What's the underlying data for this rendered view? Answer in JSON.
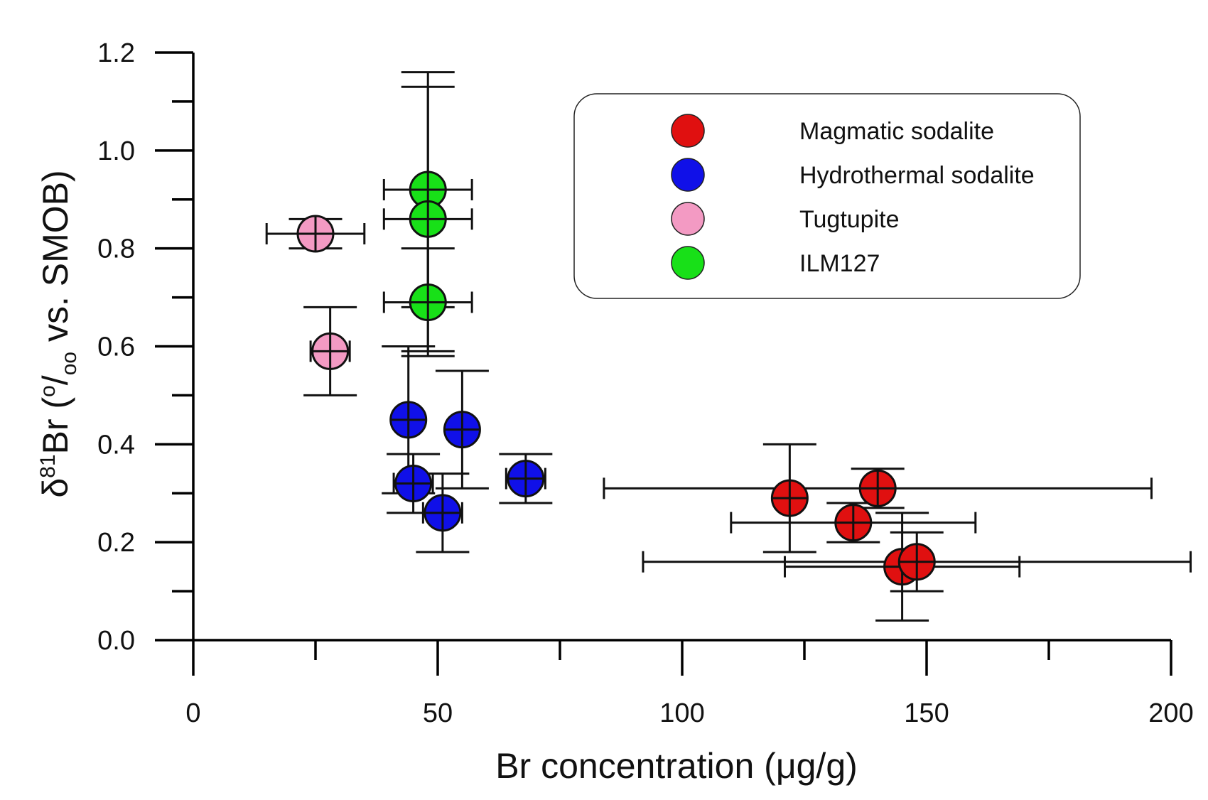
{
  "chart_data": {
    "type": "scatter",
    "title": "",
    "xlabel": "Br concentration (μg/g)",
    "ylabel": {
      "prefix": "δ",
      "sup": "81",
      "main": "Br (",
      "unit_sup": "o",
      "unit_slash": "/",
      "unit_sub": "oo",
      "suffix": " vs. SMOB)"
    },
    "xlim": [
      0,
      200
    ],
    "ylim": [
      0,
      1.2
    ],
    "x_ticks": [
      0,
      50,
      100,
      150,
      200
    ],
    "x_tick_labels": [
      "0",
      "50",
      "100",
      "150",
      "200"
    ],
    "y_ticks": [
      0,
      0.2,
      0.4,
      0.6,
      0.8,
      1.0,
      1.2
    ],
    "y_tick_labels": [
      "0.0",
      "0.2",
      "0.4",
      "0.6",
      "0.8",
      "1.0",
      "1.2"
    ],
    "grid": false,
    "legend_position": "top-right",
    "series": [
      {
        "name": "Magmatic sodalite",
        "color": "#e01010",
        "points": [
          {
            "x": 122,
            "y": 0.29,
            "xerr": 3,
            "yerr": 0.11
          },
          {
            "x": 140,
            "y": 0.31,
            "xerr": 56,
            "yerr": 0.04
          },
          {
            "x": 135,
            "y": 0.24,
            "xerr": 25,
            "yerr": 0.04
          },
          {
            "x": 145,
            "y": 0.15,
            "xerr": 24,
            "yerr": 0.11
          },
          {
            "x": 148,
            "y": 0.16,
            "xerr": 56,
            "yerr": 0.06
          }
        ]
      },
      {
        "name": "Hydrothermal sodalite",
        "color": "#1010e8",
        "points": [
          {
            "x": 44,
            "y": 0.45,
            "xerr": 2,
            "yerr": 0.15
          },
          {
            "x": 55,
            "y": 0.43,
            "xerr": 3,
            "yerr": 0.12
          },
          {
            "x": 45,
            "y": 0.32,
            "xerr": 4,
            "yerr": 0.06
          },
          {
            "x": 51,
            "y": 0.26,
            "xerr": 4,
            "yerr": 0.08
          },
          {
            "x": 68,
            "y": 0.33,
            "xerr": 4,
            "yerr": 0.05
          }
        ]
      },
      {
        "name": "Tugtupite",
        "color": "#f39ac3",
        "points": [
          {
            "x": 25,
            "y": 0.83,
            "xerr": 10,
            "yerr": 0.03
          },
          {
            "x": 28,
            "y": 0.59,
            "xerr": 4,
            "yerr": 0.09
          }
        ]
      },
      {
        "name": "ILM127",
        "color": "#18e018",
        "points": [
          {
            "x": 48,
            "y": 0.92,
            "xerr": 9,
            "yerr": 0.24
          },
          {
            "x": 48,
            "y": 0.86,
            "xerr": 9,
            "yerr": 0.27
          },
          {
            "x": 48,
            "y": 0.69,
            "xerr": 9,
            "yerr": 0.11
          }
        ]
      }
    ]
  }
}
